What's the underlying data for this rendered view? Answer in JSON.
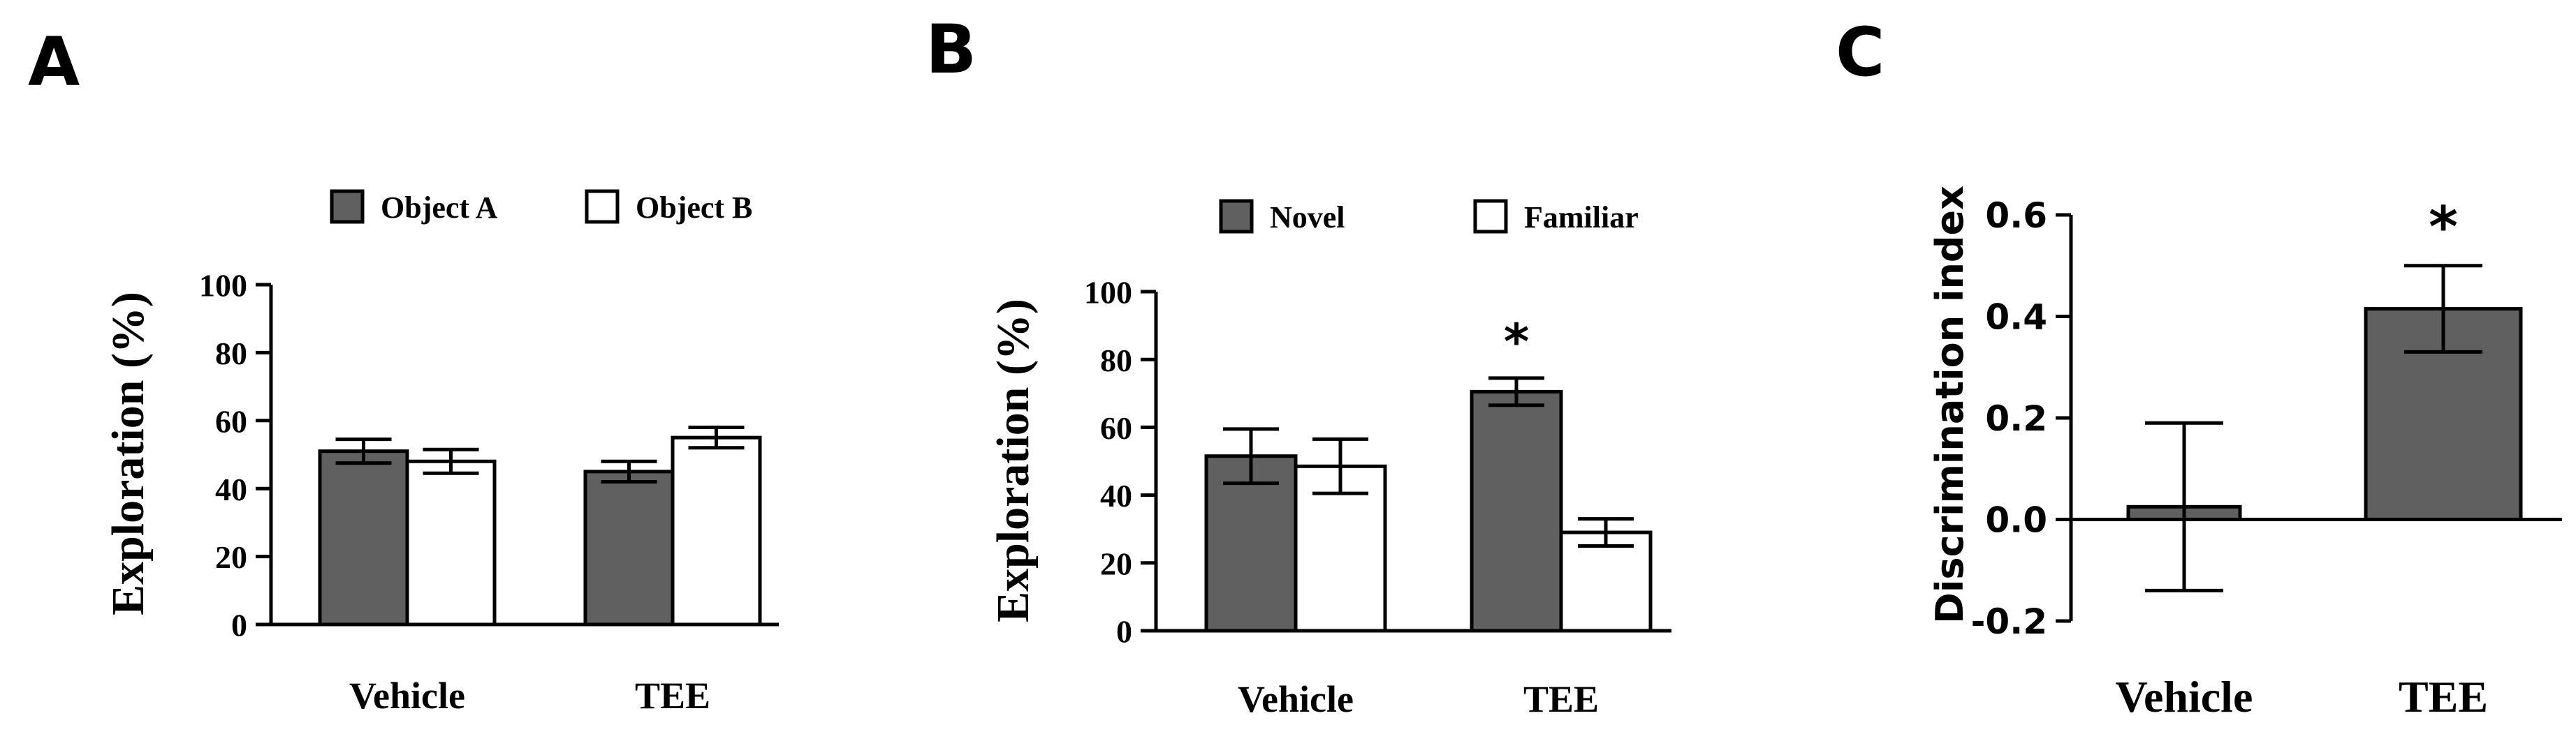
{
  "chart_data": [
    {
      "panel": "A",
      "type": "bar",
      "categories": [
        "Vehicle",
        "TEE"
      ],
      "series": [
        {
          "name": "Object A",
          "values": [
            51,
            45
          ],
          "errors": [
            3.5,
            3
          ],
          "fill": "#606060"
        },
        {
          "name": "Object B",
          "values": [
            48,
            55
          ],
          "errors": [
            3.5,
            3
          ],
          "fill": "#ffffff"
        }
      ],
      "ylabel": "Exploration (%)",
      "ylim": [
        0,
        100
      ],
      "yticks": [
        "0",
        "20",
        "40",
        "60",
        "80",
        "100"
      ],
      "annotations": [],
      "legend": "top"
    },
    {
      "panel": "B",
      "type": "bar",
      "categories": [
        "Vehicle",
        "TEE"
      ],
      "series": [
        {
          "name": "Novel",
          "values": [
            51.5,
            70.5
          ],
          "errors": [
            8,
            4
          ],
          "fill": "#606060"
        },
        {
          "name": "Familiar",
          "values": [
            48.5,
            29
          ],
          "errors": [
            8,
            4
          ],
          "fill": "#ffffff"
        }
      ],
      "ylabel": "Exploration (%)",
      "ylim": [
        0,
        100
      ],
      "yticks": [
        "0",
        "20",
        "40",
        "60",
        "80",
        "100"
      ],
      "annotations": [
        {
          "text": "*",
          "category": "TEE",
          "series": "Novel"
        }
      ],
      "legend": "top"
    },
    {
      "panel": "C",
      "type": "bar",
      "categories": [
        "Vehicle",
        "TEE"
      ],
      "series": [
        {
          "name": "Discrimination index",
          "values": [
            0.025,
            0.415
          ],
          "errors": [
            0.165,
            0.085
          ],
          "fill": "#606060"
        }
      ],
      "ylabel": "Discrimination index",
      "ylim": [
        -0.2,
        0.6
      ],
      "yticks": [
        "-0.2",
        "0.0",
        "0.2",
        "0.4",
        "0.6"
      ],
      "annotations": [
        {
          "text": "*",
          "category": "TEE",
          "series": "Discrimination index"
        }
      ],
      "legend": "none"
    }
  ]
}
